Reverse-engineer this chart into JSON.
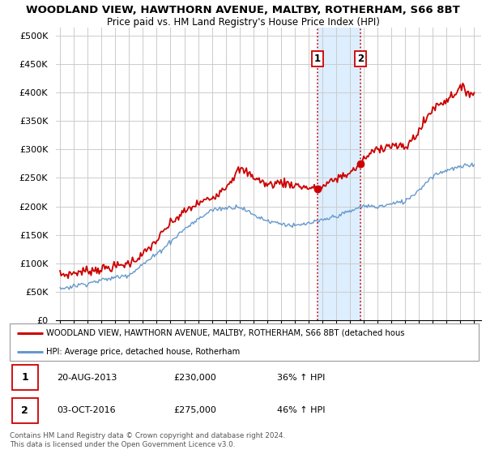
{
  "title1": "WOODLAND VIEW, HAWTHORN AVENUE, MALTBY, ROTHERHAM, S66 8BT",
  "title2": "Price paid vs. HM Land Registry's House Price Index (HPI)",
  "ylabel_ticks": [
    "£0",
    "£50K",
    "£100K",
    "£150K",
    "£200K",
    "£250K",
    "£300K",
    "£350K",
    "£400K",
    "£450K",
    "£500K"
  ],
  "ytick_values": [
    0,
    50000,
    100000,
    150000,
    200000,
    250000,
    300000,
    350000,
    400000,
    450000,
    500000
  ],
  "ylim": [
    0,
    515000
  ],
  "red_color": "#cc0000",
  "blue_color": "#6699cc",
  "highlight_fill": "#ddeeff",
  "legend_text1": "WOODLAND VIEW, HAWTHORN AVENUE, MALTBY, ROTHERHAM, S66 8BT (detached hous",
  "legend_text2": "HPI: Average price, detached house, Rotherham",
  "annotation1_date": "20-AUG-2013",
  "annotation1_price": "£230,000",
  "annotation1_hpi": "36% ↑ HPI",
  "annotation2_date": "03-OCT-2016",
  "annotation2_price": "£275,000",
  "annotation2_hpi": "46% ↑ HPI",
  "footer": "Contains HM Land Registry data © Crown copyright and database right 2024.\nThis data is licensed under the Open Government Licence v3.0.",
  "sale1_x": 2013.64,
  "sale1_y": 230000,
  "sale2_x": 2016.75,
  "sale2_y": 275000,
  "vline1_x": 2013.64,
  "vline2_x": 2016.75,
  "xmin": 1995,
  "xmax": 2025
}
